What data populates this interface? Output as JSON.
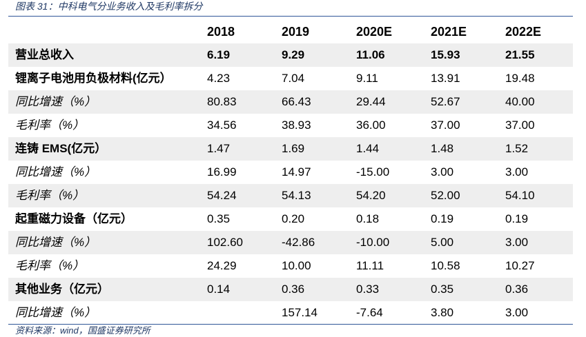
{
  "caption": "图表 31：中科电气分业务收入及毛利率拆分",
  "header": [
    "",
    "2018",
    "2019",
    "2020E",
    "2021E",
    "2022E"
  ],
  "rows": [
    {
      "label": "营业总收入",
      "values": [
        "6.19",
        "9.29",
        "11.06",
        "15.93",
        "21.55"
      ]
    },
    {
      "label": "锂离子电池用负极材料(亿元）",
      "values": [
        "4.23",
        "7.04",
        "9.11",
        "13.91",
        "19.48"
      ]
    },
    {
      "label": "同比增速（%）",
      "values": [
        "80.83",
        "66.43",
        "29.44",
        "52.67",
        "40.00"
      ]
    },
    {
      "label": "毛利率（%）",
      "values": [
        "34.56",
        "38.93",
        "36.00",
        "37.00",
        "37.00"
      ]
    },
    {
      "label": "连铸 EMS(亿元）",
      "values": [
        "1.47",
        "1.69",
        "1.44",
        "1.48",
        "1.52"
      ]
    },
    {
      "label": "同比增速（%）",
      "values": [
        "16.99",
        "14.97",
        "-15.00",
        "3.00",
        "3.00"
      ]
    },
    {
      "label": "毛利率（%）",
      "values": [
        "54.24",
        "54.13",
        "54.20",
        "52.00",
        "54.10"
      ]
    },
    {
      "label": "起重磁力设备（亿元）",
      "values": [
        "0.35",
        "0.20",
        "0.18",
        "0.19",
        "0.19"
      ]
    },
    {
      "label": "同比增速（%）",
      "values": [
        "102.60",
        "-42.86",
        "-10.00",
        "5.00",
        "3.00"
      ]
    },
    {
      "label": "毛利率（%）",
      "values": [
        "24.29",
        "10.00",
        "11.11",
        "10.58",
        "10.27"
      ]
    },
    {
      "label": "其他业务（亿元）",
      "values": [
        "0.14",
        "0.36",
        "0.33",
        "0.35",
        "0.36"
      ]
    },
    {
      "label": "同比增速（%）",
      "values": [
        "",
        "157.14",
        "-7.64",
        "3.80",
        "3.00"
      ]
    }
  ],
  "source": "资料来源：wind，国盛证券研究所",
  "colors": {
    "accent": "#1f3864",
    "rule": "#2e5597",
    "shade": "#eeeeee"
  }
}
